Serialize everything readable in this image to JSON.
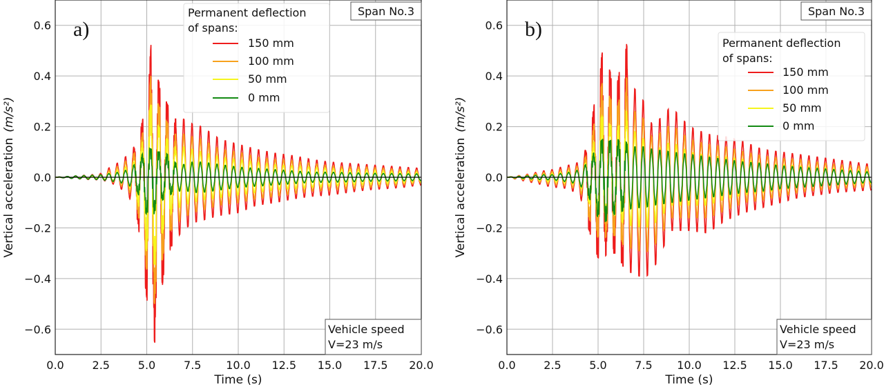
{
  "chart_data": [
    {
      "type": "line",
      "panel_label": "a)",
      "xlabel": "Time (s)",
      "ylabel": "Vertical acceleration",
      "ylabel_unit": "(m/s²)",
      "xlim": [
        0,
        20
      ],
      "ylim": [
        -0.7,
        0.7
      ],
      "xticks": [
        "0.0",
        "2.5",
        "5.0",
        "7.5",
        "10.0",
        "12.5",
        "15.0",
        "17.5",
        "20.0"
      ],
      "yticks": [
        "0.6",
        "0.4",
        "0.2",
        "0.0",
        "−0.2",
        "−0.4",
        "−0.6"
      ],
      "ytick_values": [
        0.6,
        0.4,
        0.2,
        0.0,
        -0.2,
        -0.4,
        -0.6
      ],
      "xtick_values": [
        0,
        2.5,
        5,
        7.5,
        10,
        12.5,
        15,
        17.5,
        20
      ],
      "grid": true,
      "legend_title": [
        "Permanent deflection",
        "of spans:"
      ],
      "legend_placement": "top-center",
      "annotation_top": "Span No.3",
      "annotation_bottom": [
        "Vehicle speed",
        "V=23 m/s"
      ],
      "dominant_frequency_hz": 2.2,
      "envelope_time": [
        0,
        1,
        2,
        2.5,
        3,
        3.5,
        4,
        4.5,
        5,
        5.25,
        5.5,
        6,
        6.5,
        7,
        7.5,
        8,
        9,
        10,
        11,
        12,
        13,
        14,
        15,
        16,
        17,
        18,
        19,
        20
      ],
      "series": [
        {
          "name": "150 mm",
          "color": "#ee1c1c",
          "upper": [
            0,
            0.005,
            0.01,
            0.015,
            0.04,
            0.06,
            0.09,
            0.14,
            0.3,
            0.54,
            0.41,
            0.31,
            0.23,
            0.23,
            0.21,
            0.2,
            0.15,
            0.13,
            0.11,
            0.095,
            0.085,
            0.07,
            0.06,
            0.055,
            0.05,
            0.045,
            0.04,
            0.035
          ],
          "lower": [
            0,
            -0.005,
            -0.01,
            -0.01,
            -0.02,
            -0.04,
            -0.07,
            -0.17,
            -0.48,
            -0.6,
            -0.67,
            -0.33,
            -0.25,
            -0.21,
            -0.18,
            -0.17,
            -0.15,
            -0.14,
            -0.11,
            -0.1,
            -0.085,
            -0.075,
            -0.07,
            -0.06,
            -0.05,
            -0.045,
            -0.04,
            -0.03
          ]
        },
        {
          "name": "100 mm",
          "color": "#f7a11c",
          "upper": [
            0,
            0.004,
            0.008,
            0.011,
            0.03,
            0.045,
            0.07,
            0.11,
            0.23,
            0.42,
            0.31,
            0.23,
            0.17,
            0.17,
            0.16,
            0.15,
            0.11,
            0.1,
            0.08,
            0.07,
            0.065,
            0.055,
            0.045,
            0.04,
            0.04,
            0.035,
            0.03,
            0.026
          ],
          "lower": [
            0,
            -0.004,
            -0.008,
            -0.008,
            -0.015,
            -0.03,
            -0.05,
            -0.13,
            -0.37,
            -0.45,
            -0.52,
            -0.25,
            -0.19,
            -0.16,
            -0.14,
            -0.13,
            -0.11,
            -0.1,
            -0.085,
            -0.075,
            -0.065,
            -0.055,
            -0.05,
            -0.045,
            -0.04,
            -0.035,
            -0.03,
            -0.023
          ]
        },
        {
          "name": "50 mm",
          "color": "#f5f51c",
          "upper": [
            0,
            0.003,
            0.005,
            0.008,
            0.02,
            0.03,
            0.045,
            0.07,
            0.2,
            0.3,
            0.22,
            0.16,
            0.12,
            0.12,
            0.11,
            0.1,
            0.08,
            0.07,
            0.06,
            0.05,
            0.045,
            0.04,
            0.035,
            0.03,
            0.028,
            0.025,
            0.022,
            0.02
          ],
          "lower": [
            0,
            -0.003,
            -0.005,
            -0.006,
            -0.01,
            -0.02,
            -0.035,
            -0.09,
            -0.3,
            -0.33,
            -0.35,
            -0.17,
            -0.13,
            -0.11,
            -0.1,
            -0.09,
            -0.08,
            -0.07,
            -0.06,
            -0.05,
            -0.045,
            -0.04,
            -0.035,
            -0.03,
            -0.028,
            -0.025,
            -0.022,
            -0.018
          ]
        },
        {
          "name": "0 mm",
          "color": "#128a12",
          "upper": [
            0,
            0.005,
            0.008,
            0.01,
            0.015,
            0.02,
            0.03,
            0.06,
            0.12,
            0.11,
            0.1,
            0.1,
            0.06,
            0.05,
            0.06,
            0.06,
            0.05,
            0.04,
            0.035,
            0.03,
            0.025,
            0.02,
            0.02,
            0.018,
            0.016,
            0.015,
            0.014,
            0.013
          ],
          "lower": [
            0,
            -0.005,
            -0.008,
            -0.01,
            -0.015,
            -0.02,
            -0.03,
            -0.06,
            -0.15,
            -0.18,
            -0.12,
            -0.08,
            -0.06,
            -0.05,
            -0.06,
            -0.06,
            -0.05,
            -0.04,
            -0.035,
            -0.03,
            -0.025,
            -0.02,
            -0.02,
            -0.018,
            -0.016,
            -0.015,
            -0.014,
            -0.013
          ]
        }
      ]
    },
    {
      "type": "line",
      "panel_label": "b)",
      "xlabel": "Time (s)",
      "ylabel": "Vertical acceleration",
      "ylabel_unit": "(m/s²)",
      "xlim": [
        0,
        20
      ],
      "ylim": [
        -0.7,
        0.7
      ],
      "xticks": [
        "0.0",
        "2.5",
        "5.0",
        "7.5",
        "10.0",
        "12.5",
        "15.0",
        "17.5",
        "20.0"
      ],
      "yticks": [
        "0.6",
        "0.4",
        "0.2",
        "0.0",
        "−0.2",
        "−0.4",
        "−0.6"
      ],
      "ytick_values": [
        0.6,
        0.4,
        0.2,
        0.0,
        -0.2,
        -0.4,
        -0.6
      ],
      "xtick_values": [
        0,
        2.5,
        5,
        7.5,
        10,
        12.5,
        15,
        17.5,
        20
      ],
      "grid": true,
      "legend_title": [
        "Permanent deflection",
        "of spans:"
      ],
      "legend_placement": "top-right",
      "annotation_top": "Span No.3",
      "annotation_bottom": [
        "Vehicle speed",
        "V=23 m/s"
      ],
      "dominant_frequency_hz": 2.2,
      "envelope_time": [
        0,
        1,
        2,
        2.5,
        3,
        3.5,
        4,
        4.5,
        5,
        5.25,
        5.5,
        6,
        6.5,
        7,
        7.5,
        8,
        9,
        10,
        11,
        12,
        13,
        14,
        15,
        16,
        17,
        18,
        19,
        20
      ],
      "series": [
        {
          "name": "150 mm",
          "color": "#ee1c1c",
          "upper": [
            0,
            0.01,
            0.025,
            0.03,
            0.04,
            0.05,
            0.06,
            0.14,
            0.4,
            0.5,
            0.45,
            0.35,
            0.55,
            0.35,
            0.3,
            0.2,
            0.28,
            0.2,
            0.17,
            0.16,
            0.14,
            0.11,
            0.1,
            0.09,
            0.08,
            0.07,
            0.06,
            0.05
          ],
          "lower": [
            0,
            -0.015,
            -0.03,
            -0.04,
            -0.04,
            -0.05,
            -0.07,
            -0.21,
            -0.32,
            -0.33,
            -0.3,
            -0.3,
            -0.37,
            -0.38,
            -0.4,
            -0.37,
            -0.21,
            -0.21,
            -0.22,
            -0.17,
            -0.14,
            -0.12,
            -0.1,
            -0.08,
            -0.07,
            -0.06,
            -0.055,
            -0.05
          ]
        },
        {
          "name": "100 mm",
          "color": "#f7a11c",
          "upper": [
            0,
            0.008,
            0.019,
            0.023,
            0.03,
            0.038,
            0.045,
            0.1,
            0.3,
            0.38,
            0.34,
            0.26,
            0.41,
            0.26,
            0.23,
            0.15,
            0.21,
            0.15,
            0.13,
            0.12,
            0.1,
            0.085,
            0.075,
            0.07,
            0.06,
            0.05,
            0.045,
            0.04
          ],
          "lower": [
            0,
            -0.011,
            -0.023,
            -0.03,
            -0.03,
            -0.038,
            -0.05,
            -0.16,
            -0.24,
            -0.25,
            -0.23,
            -0.23,
            -0.28,
            -0.28,
            -0.3,
            -0.28,
            -0.16,
            -0.16,
            -0.16,
            -0.13,
            -0.1,
            -0.09,
            -0.075,
            -0.06,
            -0.05,
            -0.045,
            -0.04,
            -0.038
          ]
        },
        {
          "name": "50 mm",
          "color": "#f5f51c",
          "upper": [
            0,
            0.005,
            0.012,
            0.015,
            0.02,
            0.025,
            0.03,
            0.07,
            0.2,
            0.25,
            0.22,
            0.18,
            0.27,
            0.18,
            0.15,
            0.1,
            0.14,
            0.1,
            0.085,
            0.08,
            0.07,
            0.055,
            0.05,
            0.045,
            0.04,
            0.035,
            0.03,
            0.025
          ],
          "lower": [
            0,
            -0.008,
            -0.015,
            -0.02,
            -0.02,
            -0.025,
            -0.035,
            -0.1,
            -0.16,
            -0.17,
            -0.15,
            -0.15,
            -0.19,
            -0.19,
            -0.2,
            -0.19,
            -0.11,
            -0.11,
            -0.11,
            -0.085,
            -0.07,
            -0.06,
            -0.05,
            -0.04,
            -0.035,
            -0.03,
            -0.028,
            -0.025
          ]
        },
        {
          "name": "0 mm",
          "color": "#128a12",
          "upper": [
            0,
            0.005,
            0.01,
            0.01,
            0.015,
            0.02,
            0.03,
            0.06,
            0.13,
            0.15,
            0.14,
            0.15,
            0.14,
            0.12,
            0.12,
            0.11,
            0.1,
            0.09,
            0.08,
            0.07,
            0.06,
            0.055,
            0.045,
            0.04,
            0.035,
            0.03,
            0.025,
            0.02
          ],
          "lower": [
            0,
            -0.005,
            -0.01,
            -0.01,
            -0.015,
            -0.02,
            -0.03,
            -0.08,
            -0.16,
            -0.18,
            -0.17,
            -0.14,
            -0.13,
            -0.12,
            -0.12,
            -0.11,
            -0.1,
            -0.09,
            -0.08,
            -0.07,
            -0.06,
            -0.055,
            -0.045,
            -0.04,
            -0.035,
            -0.03,
            -0.025,
            -0.02
          ]
        }
      ]
    }
  ]
}
